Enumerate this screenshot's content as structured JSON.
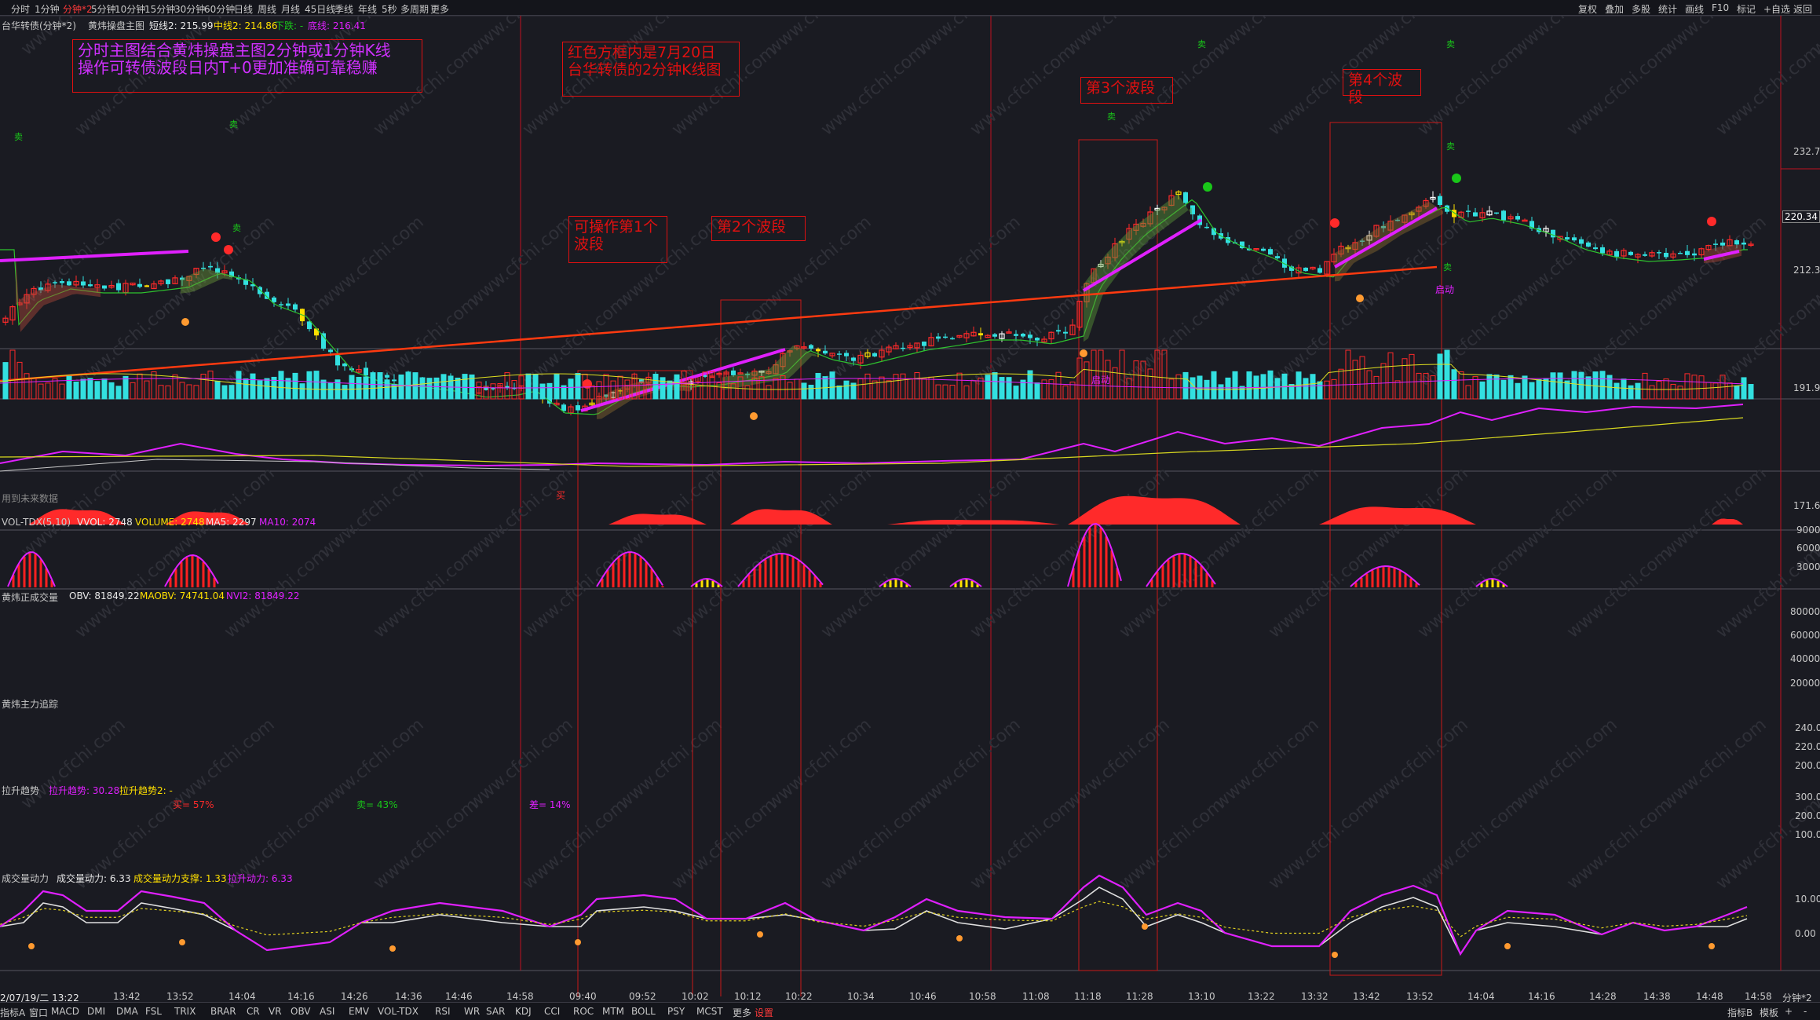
{
  "toolbar": {
    "period_tabs": [
      "分时",
      "1分钟",
      "分钟*2",
      "5分钟",
      "10分钟",
      "15分钟",
      "30分钟",
      "60分钟",
      "日线",
      "周线",
      "月线",
      "45日线",
      "季线",
      "年线",
      "5秒",
      "多周期",
      "更多"
    ],
    "active_tab": "分钟*2",
    "right_tabs": [
      "复权",
      "叠加",
      "多股",
      "统计",
      "画线",
      "F10",
      "标记",
      "+自选",
      "返回"
    ]
  },
  "main_chart": {
    "title": "台华转债(分钟*2)",
    "indicator": "黄炜操盘主图",
    "short_line": "短线2: 215.99",
    "mid_line": "中线2: 214.86",
    "down_label": "下跌: -",
    "bottom_line": "底线: 216.41",
    "future_data_label": "用到未来数据",
    "price_levels": [
      "232.7",
      "212.3",
      "191.9",
      "171.6"
    ],
    "current_price": "220.34"
  },
  "annotations": {
    "intro": "分时主图结合黄炜操盘主图2分钟或1分钟K线\n操作可转债波段日内T+0更加准确可靠稳赚",
    "box_note": "红色方框内是7月20日\n台华转债的2分钟K线图",
    "wave1": "可操作第1个\n波段",
    "wave2": "第2个波段",
    "wave3": "第3个波段",
    "wave4": "第4个波段",
    "start1": "启动",
    "start2": "启动",
    "buy": "买",
    "sell": "卖",
    "buy_pct": "买= 57%",
    "sell_pct": "卖= 43%",
    "diff_pct": "差= 14%"
  },
  "panels": {
    "vol": {
      "label": "VOL-TDX(5,10)",
      "vvol": "VVOL: 2748",
      "volume": "VOLUME: 2748",
      "ma5": "MA5: 2297",
      "ma10": "MA10: 2074",
      "levels": [
        "9000",
        "6000",
        "3000"
      ]
    },
    "obv": {
      "label": "黄炜正成交量",
      "obv": "OBV: 81849.22",
      "maobv": "MAOBV: 74741.04",
      "nvi2": "NVI2: 81849.22",
      "levels": [
        "80000",
        "60000",
        "40000",
        "20000"
      ]
    },
    "main_force": {
      "label": "黄炜主力追踪",
      "levels": [
        "240.0",
        "220.0",
        "200.0"
      ]
    },
    "trend": {
      "label": "拉升趋势",
      "t1": "拉升趋势: 30.28",
      "t2": "拉升趋势2: -",
      "levels": [
        "300.0",
        "200.0",
        "100.0"
      ]
    },
    "power": {
      "label": "成交量动力",
      "p1": "成交量动力: 6.33",
      "p2": "成交量动力支撑: 1.33",
      "p3": "拉升动力: 6.33",
      "levels": [
        "10.00",
        "0.00"
      ]
    }
  },
  "x_axis": {
    "date": "2/07/19/二 13:22",
    "labels": [
      "13:42",
      "13:52",
      "14:04",
      "14:16",
      "14:26",
      "14:36",
      "14:46",
      "14:58",
      "09:40",
      "09:52",
      "10:02",
      "10:12",
      "10:22",
      "10:34",
      "10:46",
      "10:58",
      "11:08",
      "11:18",
      "11:28",
      "13:10",
      "13:22",
      "13:32",
      "13:42",
      "13:52",
      "14:04",
      "14:16",
      "14:28",
      "14:38",
      "14:48",
      "14:58"
    ],
    "period_label": "分钟*2"
  },
  "bottom_tabs": [
    "指标A",
    "窗口",
    "MACD",
    "DMI",
    "DMA",
    "FSL",
    "TRIX",
    "BRAR",
    "CR",
    "VR",
    "OBV",
    "ASI",
    "EMV",
    "VOL-TDX",
    "RSI",
    "WR",
    "SAR",
    "KDJ",
    "CCI",
    "ROC",
    "MTM",
    "BOLL",
    "PSY",
    "MCST",
    "更多",
    "设置"
  ],
  "bottom_active": "设置",
  "bottom_right": [
    "指标B",
    "模板",
    "+",
    "-"
  ],
  "watermark": "www.cfchi.com",
  "colors": {
    "up": "#ff2a2a",
    "down": "#33e0e0",
    "yellow": "#ffe000",
    "magenta": "#e020ff",
    "green": "#19c619",
    "bg": "#1a1b22",
    "grid": "#8a2030"
  }
}
